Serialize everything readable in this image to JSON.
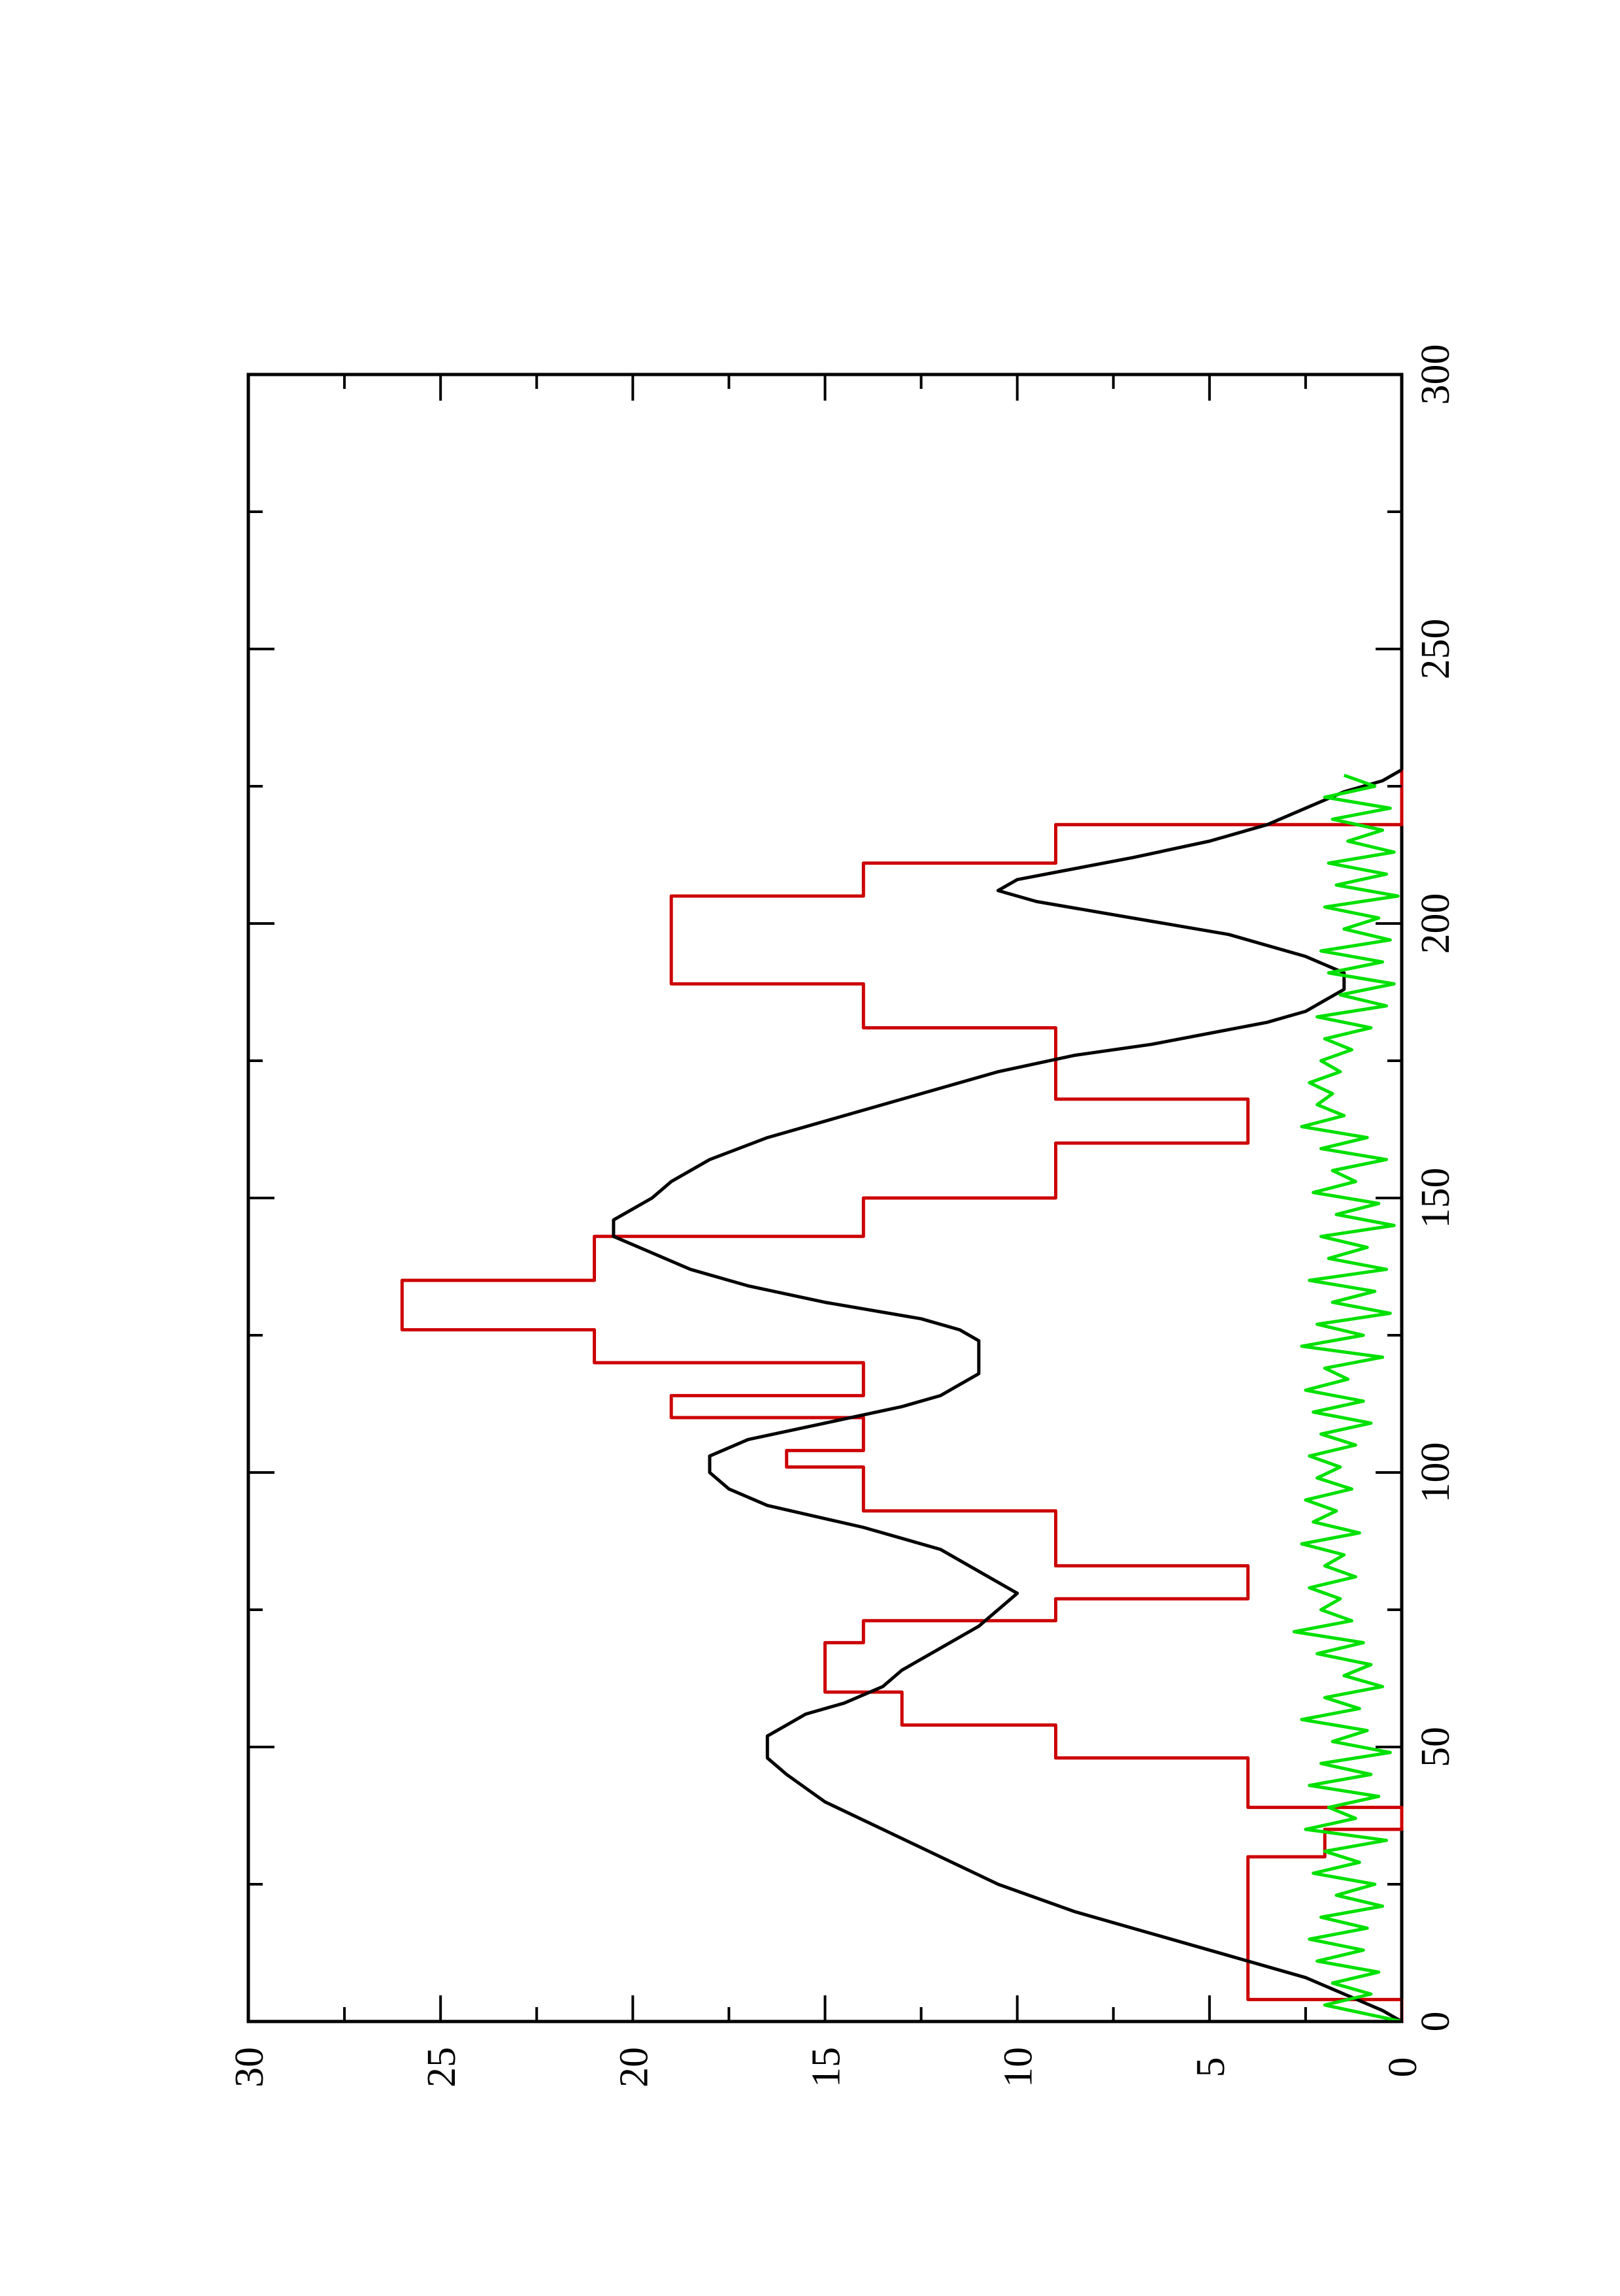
{
  "chart_data": {
    "type": "line",
    "orientation": "rotated-90-ccw",
    "title": "",
    "xlabel": "",
    "ylabel": "",
    "xlim": [
      0,
      300
    ],
    "ylim": [
      0,
      30
    ],
    "x_ticks": [
      "0",
      "50",
      "100",
      "150",
      "200",
      "250",
      "300"
    ],
    "y_ticks": [
      "0",
      "5",
      "10",
      "15",
      "20",
      "25",
      "30"
    ],
    "grid": false,
    "legend": "none",
    "series": [
      {
        "color": "#cc0000",
        "x": [
          0,
          4,
          4,
          30,
          30,
          35,
          35,
          39,
          39,
          48,
          48,
          54,
          54,
          60,
          60,
          69,
          69,
          73,
          73,
          77,
          77,
          83,
          83,
          93,
          93,
          101,
          101,
          104,
          104,
          110,
          110,
          114,
          114,
          120,
          120,
          126,
          126,
          135,
          135,
          143,
          143,
          150,
          150,
          160,
          160,
          168,
          168,
          181,
          181,
          189,
          189,
          205,
          205,
          211,
          211,
          218,
          218,
          228
        ],
        "y": [
          0,
          0,
          4,
          4,
          2,
          2,
          0,
          0,
          4,
          4,
          9,
          9,
          13,
          13,
          15,
          15,
          14,
          14,
          9,
          9,
          4,
          4,
          9,
          9,
          14,
          14,
          16,
          16,
          14,
          14,
          19,
          19,
          14,
          14,
          21,
          21,
          26,
          26,
          21,
          21,
          14,
          14,
          9,
          9,
          4,
          4,
          9,
          9,
          14,
          14,
          19,
          19,
          14,
          14,
          9,
          9,
          0,
          0
        ]
      },
      {
        "color": "#000000",
        "x": [
          0,
          2,
          5,
          8,
          12,
          16,
          20,
          25,
          30,
          35,
          40,
          45,
          48,
          52,
          54,
          56,
          58,
          61,
          64,
          68,
          72,
          75,
          78,
          82,
          86,
          90,
          94,
          97,
          100,
          103,
          106,
          109,
          112,
          114,
          116,
          118,
          120,
          122,
          124,
          126,
          128,
          131,
          134,
          137,
          140,
          143,
          146,
          148,
          150,
          153,
          157,
          161,
          165,
          169,
          173,
          176,
          178,
          180,
          182,
          184,
          186,
          188,
          191,
          194,
          198,
          201,
          204,
          206,
          208,
          210,
          212,
          215,
          218,
          221,
          224,
          226,
          228
        ],
        "y": [
          0,
          0.5,
          1.5,
          2.5,
          4.5,
          6.5,
          8.5,
          10.5,
          12,
          13.5,
          15,
          16,
          16.5,
          16.5,
          16,
          15.5,
          14.5,
          13.5,
          13,
          12,
          11,
          10.5,
          10,
          11,
          12,
          14,
          16.5,
          17.5,
          18,
          18,
          17,
          15,
          13,
          12,
          11.5,
          11,
          11,
          11,
          11,
          11.5,
          12.5,
          15,
          17,
          18.5,
          19.5,
          20.5,
          20.5,
          20,
          19.5,
          19,
          18,
          16.5,
          14.5,
          12.5,
          10.5,
          8.5,
          6.5,
          5,
          3.5,
          2.5,
          2,
          1.5,
          1.5,
          2.5,
          4.5,
          7,
          9.5,
          10.5,
          10,
          8.5,
          7,
          5,
          3.5,
          2.5,
          1.5,
          0.5,
          0
        ]
      },
      {
        "color": "#00e000",
        "x": [
          0,
          3,
          5,
          7,
          9,
          11,
          13,
          15,
          17,
          19,
          21,
          23,
          25,
          27,
          29,
          31,
          33,
          35,
          37,
          39,
          41,
          43,
          45,
          47,
          49,
          51,
          53,
          55,
          57,
          59,
          61,
          63,
          65,
          67,
          69,
          71,
          73,
          75,
          77,
          79,
          81,
          83,
          85,
          87,
          89,
          91,
          93,
          95,
          97,
          99,
          101,
          103,
          105,
          107,
          109,
          111,
          113,
          115,
          117,
          119,
          121,
          123,
          125,
          127,
          129,
          131,
          133,
          135,
          137,
          139,
          141,
          143,
          145,
          147,
          149,
          151,
          153,
          155,
          157,
          159,
          161,
          163,
          165,
          167,
          169,
          171,
          173,
          175,
          177,
          179,
          181,
          183,
          185,
          187,
          189,
          191,
          193,
          195,
          197,
          199,
          201,
          203,
          205,
          207,
          209,
          211,
          213,
          215,
          217,
          219,
          221,
          223,
          225,
          227
        ],
        "y": [
          0,
          2,
          0.8,
          1.8,
          0.6,
          2.2,
          1,
          2.4,
          0.9,
          2.1,
          0.5,
          1.7,
          0.7,
          2.3,
          1.1,
          2,
          0.4,
          2.5,
          1.2,
          1.9,
          0.6,
          2.4,
          0.8,
          2.1,
          0.3,
          1.8,
          0.9,
          2.6,
          1.1,
          2,
          0.5,
          1.5,
          0.8,
          2.2,
          1,
          2.8,
          1.3,
          2.1,
          1.6,
          2.4,
          1.2,
          2,
          1.5,
          2.6,
          1.1,
          2.3,
          1.7,
          2.5,
          1.3,
          2.2,
          1.6,
          2.4,
          1.2,
          2.1,
          0.8,
          2.3,
          1,
          2.5,
          1.4,
          2,
          0.5,
          2.6,
          1,
          2.2,
          0.3,
          1.8,
          0.7,
          2.4,
          0.4,
          1.9,
          0.9,
          2.1,
          0.2,
          1.7,
          0.6,
          2.3,
          1.2,
          1.8,
          0.4,
          2.1,
          0.9,
          2.6,
          1.5,
          2.2,
          1.8,
          2.4,
          1.6,
          2.1,
          1.3,
          2,
          0.8,
          2.2,
          0.4,
          1.6,
          0.2,
          1.9,
          0.5,
          2.1,
          0.3,
          1.5,
          0.6,
          2,
          0.1,
          1.7,
          0.4,
          1.9,
          0.2,
          1.4,
          0.5,
          1.8,
          0.3,
          2,
          0.7,
          1.5
        ]
      }
    ]
  }
}
